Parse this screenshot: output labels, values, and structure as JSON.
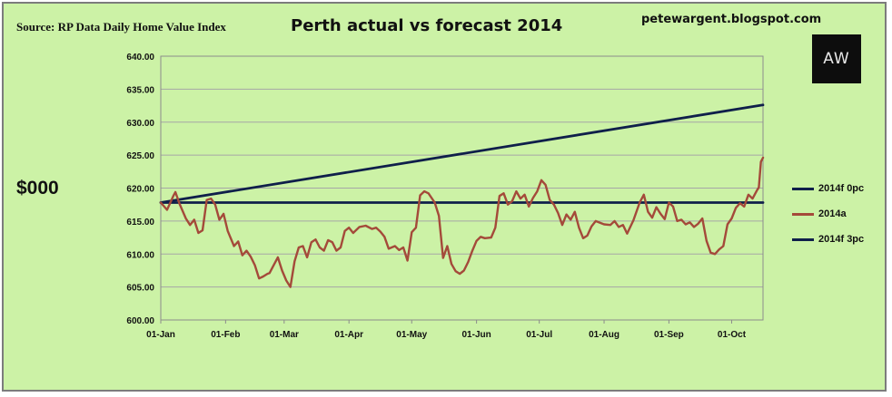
{
  "header": {
    "source": "Source: RP Data Daily Home Value Index",
    "title": "Perth actual vs forecast 2014",
    "blog": "petewargent.blogspot.com",
    "logo_text": "AW"
  },
  "chart_data": {
    "type": "line",
    "ylabel": "$000",
    "ylim": [
      600,
      640
    ],
    "y_ticks": [
      "600.00",
      "605.00",
      "610.00",
      "615.00",
      "620.00",
      "625.00",
      "630.00",
      "635.00",
      "640.00"
    ],
    "x_ticks": [
      "01-Jan",
      "01-Feb",
      "01-Mar",
      "01-Apr",
      "01-May",
      "01-Jun",
      "01-Jul",
      "01-Aug",
      "01-Sep",
      "01-Oct"
    ],
    "grid": "horizontal",
    "legend_position": "right",
    "series": [
      {
        "name": "2014f 0pc",
        "color": "#0f1f4a",
        "points": [
          [
            "01-Jan",
            617.8
          ],
          [
            "16-Oct",
            617.8
          ]
        ]
      },
      {
        "name": "2014a",
        "color": "#a44a3a",
        "points": [
          [
            "01-Jan",
            617.8
          ],
          [
            "04-Jan",
            616.7
          ],
          [
            "07-Jan",
            618.8
          ],
          [
            "08-Jan",
            619.4
          ],
          [
            "10-Jan",
            617.6
          ],
          [
            "13-Jan",
            615.4
          ],
          [
            "15-Jan",
            614.4
          ],
          [
            "17-Jan",
            615.2
          ],
          [
            "19-Jan",
            613.2
          ],
          [
            "21-Jan",
            613.6
          ],
          [
            "23-Jan",
            618.2
          ],
          [
            "25-Jan",
            618.4
          ],
          [
            "27-Jan",
            617.5
          ],
          [
            "29-Jan",
            615.2
          ],
          [
            "31-Jan",
            616.1
          ],
          [
            "02-Feb",
            613.5
          ],
          [
            "05-Feb",
            611.2
          ],
          [
            "07-Feb",
            611.9
          ],
          [
            "09-Feb",
            609.8
          ],
          [
            "11-Feb",
            610.5
          ],
          [
            "13-Feb",
            609.6
          ],
          [
            "15-Feb",
            608.3
          ],
          [
            "17-Feb",
            606.3
          ],
          [
            "19-Feb",
            606.6
          ],
          [
            "21-Feb",
            607.0
          ],
          [
            "22-Feb",
            607.1
          ],
          [
            "24-Feb",
            608.3
          ],
          [
            "26-Feb",
            609.5
          ],
          [
            "28-Feb",
            607.5
          ],
          [
            "02-Mar",
            606.0
          ],
          [
            "04-Mar",
            605.0
          ],
          [
            "06-Mar",
            608.9
          ],
          [
            "08-Mar",
            611.0
          ],
          [
            "10-Mar",
            611.2
          ],
          [
            "12-Mar",
            609.5
          ],
          [
            "14-Mar",
            611.8
          ],
          [
            "16-Mar",
            612.2
          ],
          [
            "18-Mar",
            611.0
          ],
          [
            "20-Mar",
            610.5
          ],
          [
            "22-Mar",
            612.1
          ],
          [
            "24-Mar",
            611.8
          ],
          [
            "26-Mar",
            610.5
          ],
          [
            "28-Mar",
            611.0
          ],
          [
            "30-Mar",
            613.5
          ],
          [
            "01-Apr",
            614.0
          ],
          [
            "03-Apr",
            613.2
          ],
          [
            "06-Apr",
            614.1
          ],
          [
            "09-Apr",
            614.3
          ],
          [
            "12-Apr",
            613.8
          ],
          [
            "14-Apr",
            614.0
          ],
          [
            "16-Apr",
            613.4
          ],
          [
            "18-Apr",
            612.6
          ],
          [
            "20-Apr",
            610.8
          ],
          [
            "23-Apr",
            611.2
          ],
          [
            "25-Apr",
            610.6
          ],
          [
            "27-Apr",
            611.0
          ],
          [
            "29-Apr",
            609.0
          ],
          [
            "01-May",
            613.3
          ],
          [
            "03-May",
            614.0
          ],
          [
            "05-May",
            618.9
          ],
          [
            "07-May",
            619.5
          ],
          [
            "09-May",
            619.2
          ],
          [
            "12-May",
            617.8
          ],
          [
            "14-May",
            615.8
          ],
          [
            "16-May",
            609.4
          ],
          [
            "18-May",
            611.2
          ],
          [
            "20-May",
            608.5
          ],
          [
            "22-May",
            607.4
          ],
          [
            "24-May",
            607.0
          ],
          [
            "26-May",
            607.5
          ],
          [
            "28-May",
            608.8
          ],
          [
            "30-May",
            610.5
          ],
          [
            "01-Jun",
            612.0
          ],
          [
            "03-Jun",
            612.6
          ],
          [
            "05-Jun",
            612.4
          ],
          [
            "08-Jun",
            612.5
          ],
          [
            "10-Jun",
            614.0
          ],
          [
            "12-Jun",
            618.8
          ],
          [
            "14-Jun",
            619.2
          ],
          [
            "16-Jun",
            617.5
          ],
          [
            "18-Jun",
            618.0
          ],
          [
            "20-Jun",
            619.5
          ],
          [
            "22-Jun",
            618.4
          ],
          [
            "24-Jun",
            619.0
          ],
          [
            "26-Jun",
            617.2
          ],
          [
            "28-Jun",
            618.5
          ],
          [
            "30-Jun",
            619.5
          ],
          [
            "02-Jul",
            621.2
          ],
          [
            "04-Jul",
            620.5
          ],
          [
            "06-Jul",
            618.2
          ],
          [
            "08-Jul",
            617.5
          ],
          [
            "10-Jul",
            616.2
          ],
          [
            "12-Jul",
            614.4
          ],
          [
            "14-Jul",
            616.0
          ],
          [
            "16-Jul",
            615.2
          ],
          [
            "18-Jul",
            616.4
          ],
          [
            "20-Jul",
            614.0
          ],
          [
            "22-Jul",
            612.4
          ],
          [
            "24-Jul",
            612.8
          ],
          [
            "26-Jul",
            614.2
          ],
          [
            "28-Jul",
            615.0
          ],
          [
            "01-Aug",
            614.5
          ],
          [
            "04-Aug",
            614.4
          ],
          [
            "06-Aug",
            615.0
          ],
          [
            "08-Aug",
            614.1
          ],
          [
            "10-Aug",
            614.4
          ],
          [
            "12-Aug",
            613.1
          ],
          [
            "15-Aug",
            615.1
          ],
          [
            "18-Aug",
            617.8
          ],
          [
            "20-Aug",
            619.0
          ],
          [
            "22-Aug",
            616.4
          ],
          [
            "24-Aug",
            615.5
          ],
          [
            "26-Aug",
            617.1
          ],
          [
            "28-Aug",
            616.1
          ],
          [
            "30-Aug",
            615.3
          ],
          [
            "01-Sep",
            617.8
          ],
          [
            "03-Sep",
            617.2
          ],
          [
            "05-Sep",
            615.0
          ],
          [
            "07-Sep",
            615.2
          ],
          [
            "09-Sep",
            614.5
          ],
          [
            "11-Sep",
            614.8
          ],
          [
            "13-Sep",
            614.1
          ],
          [
            "15-Sep",
            614.6
          ],
          [
            "17-Sep",
            615.4
          ],
          [
            "19-Sep",
            612.0
          ],
          [
            "21-Sep",
            610.2
          ],
          [
            "23-Sep",
            610.0
          ],
          [
            "25-Sep",
            610.7
          ],
          [
            "27-Sep",
            611.2
          ],
          [
            "29-Sep",
            614.5
          ],
          [
            "01-Oct",
            615.4
          ],
          [
            "03-Oct",
            617.0
          ],
          [
            "05-Oct",
            617.7
          ],
          [
            "07-Oct",
            617.2
          ],
          [
            "09-Oct",
            619.0
          ],
          [
            "11-Oct",
            618.4
          ],
          [
            "13-Oct",
            619.6
          ],
          [
            "14-Oct",
            620.1
          ],
          [
            "15-Oct",
            624.0
          ],
          [
            "16-Oct",
            624.6
          ]
        ]
      },
      {
        "name": "2014f 3pc",
        "color": "#0f1f4a",
        "points": [
          [
            "01-Jan",
            617.8
          ],
          [
            "16-Oct",
            632.6
          ]
        ]
      }
    ]
  }
}
